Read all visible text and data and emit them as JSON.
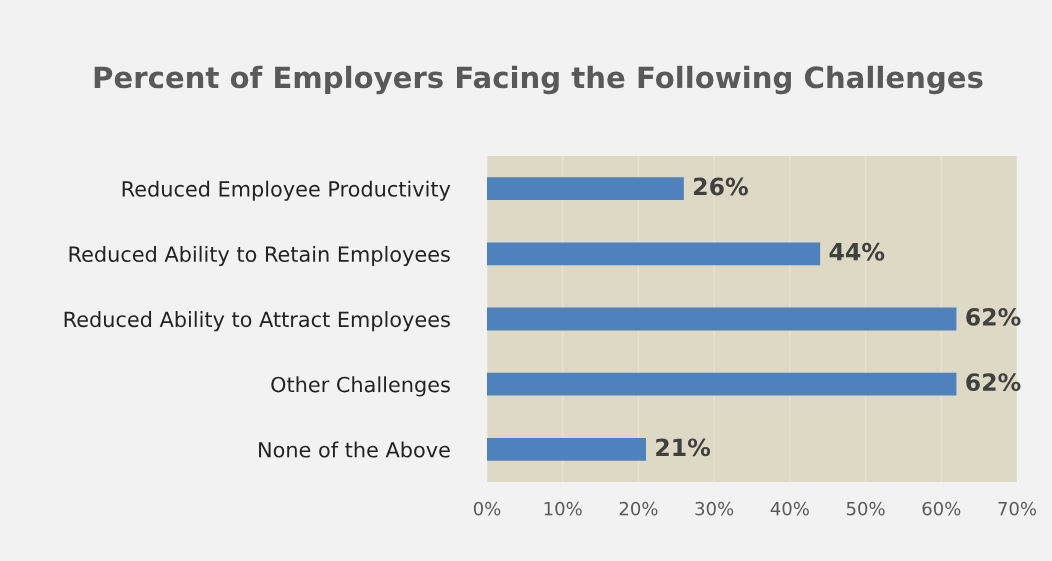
{
  "chart_data": {
    "type": "bar",
    "orientation": "horizontal",
    "title": "Percent of Employers Facing the Following Challenges",
    "categories": [
      "Reduced Employee Productivity",
      "Reduced Ability to Retain Employees",
      "Reduced Ability to Attract Employees",
      "Other Challenges",
      "None of the Above"
    ],
    "values": [
      26,
      44,
      62,
      62,
      21
    ],
    "value_labels": [
      "26%",
      "44%",
      "62%",
      "62%",
      "21%"
    ],
    "color": "#4f81bd",
    "xlim": [
      0,
      70
    ],
    "xticks": [
      {
        "value": 0,
        "label": "0%"
      },
      {
        "value": 10,
        "label": "10%"
      },
      {
        "value": 20,
        "label": "20%"
      },
      {
        "value": 30,
        "label": "30%"
      },
      {
        "value": 40,
        "label": "40%"
      },
      {
        "value": 50,
        "label": "50%"
      },
      {
        "value": 60,
        "label": "60%"
      },
      {
        "value": 70,
        "label": "70%"
      }
    ],
    "grid": "x",
    "legend": false
  }
}
